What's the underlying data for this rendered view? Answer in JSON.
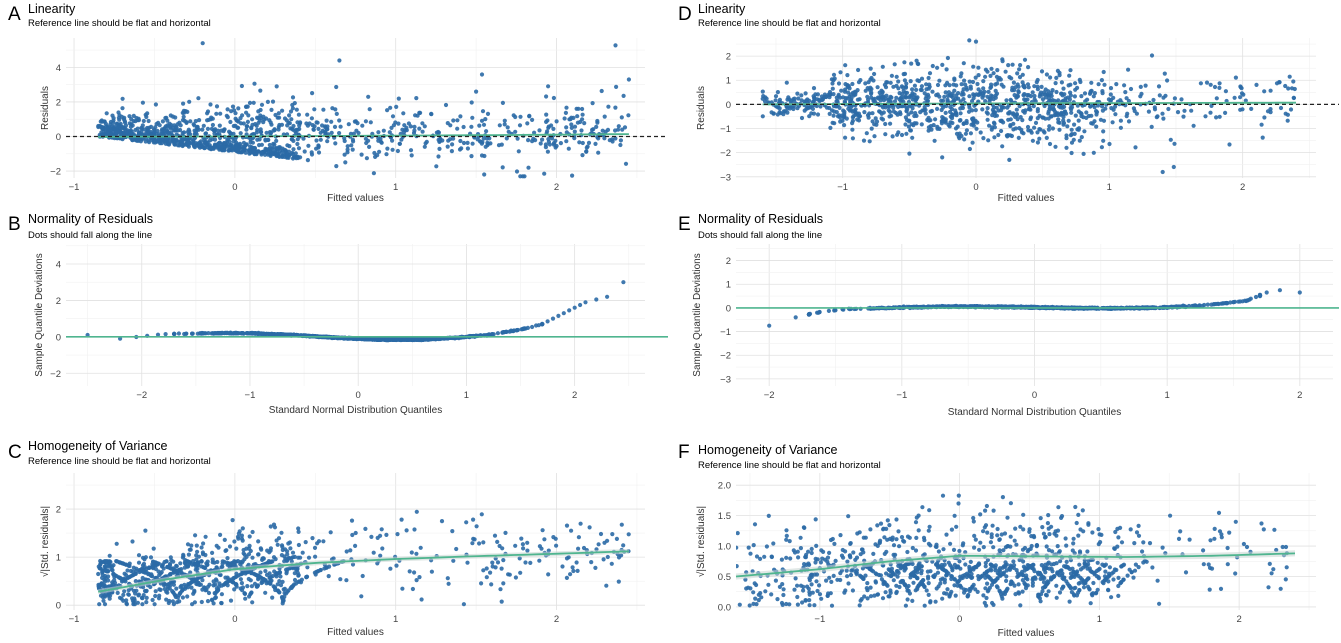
{
  "figure": {
    "colors": {
      "points": "#2b6aa6",
      "reference": "#4fb58f",
      "dashed": "#222222",
      "band": "#c9d6d2"
    }
  },
  "chart_data": [
    {
      "id": "A",
      "letter": "A",
      "type": "scatter",
      "title": "Linearity",
      "subtitle": "Reference line should be flat and horizontal",
      "xlabel": "Fitted values",
      "ylabel": "Residuals",
      "xlim": [
        -1.05,
        2.55
      ],
      "ylim": [
        -2.4,
        5.7
      ],
      "xticks": [
        -1,
        0,
        1,
        2
      ],
      "yticks": [
        -2,
        0,
        2,
        4
      ],
      "hline": 0,
      "reference_line": {
        "x": [
          -0.85,
          -0.2,
          0.5,
          1.2,
          1.9,
          2.45
        ],
        "y": [
          -0.02,
          0.0,
          0.03,
          0.06,
          0.1,
          0.14
        ]
      },
      "point_pattern": "linearity-fan",
      "x_range": [
        -0.85,
        2.45
      ],
      "extreme_points": [
        {
          "x": -0.2,
          "y": 5.4
        },
        {
          "x": 0.65,
          "y": 4.4
        },
        {
          "x": 1.5,
          "y": 2.6
        },
        {
          "x": 2.45,
          "y": 3.3
        },
        {
          "x": 1.55,
          "y": -2.2
        }
      ]
    },
    {
      "id": "D",
      "letter": "D",
      "type": "scatter",
      "title": "Linearity",
      "subtitle": "Reference line should be flat and horizontal",
      "xlabel": "Fitted values",
      "ylabel": "Residuals",
      "xlim": [
        -1.8,
        2.55
      ],
      "ylim": [
        -3.05,
        2.75
      ],
      "xticks": [
        -1,
        0,
        1,
        2
      ],
      "yticks": [
        -3,
        -2,
        -1,
        0,
        1,
        2
      ],
      "hline": 0,
      "reference_line": {
        "x": [
          -1.6,
          -0.8,
          0.0,
          0.8,
          1.6,
          2.4
        ],
        "y": [
          0.0,
          0.02,
          0.04,
          0.05,
          0.06,
          0.07
        ]
      },
      "point_pattern": "linearity-symmetric",
      "x_range": [
        -1.6,
        2.4
      ],
      "extreme_points": [
        {
          "x": -0.05,
          "y": 2.65
        },
        {
          "x": 0.0,
          "y": 2.6
        },
        {
          "x": 1.4,
          "y": -2.8
        },
        {
          "x": 0.25,
          "y": -2.3
        }
      ]
    },
    {
      "id": "B",
      "letter": "B",
      "type": "scatter",
      "title": "Normality of Residuals",
      "subtitle": "Dots should fall along the line",
      "xlabel": "Standard Normal Distribution Quantiles",
      "ylabel": "Sample Quantile Deviations",
      "xlim": [
        -2.7,
        2.65
      ],
      "ylim": [
        -2.7,
        5.1
      ],
      "xticks": [
        -2,
        -1,
        0,
        1,
        2
      ],
      "yticks": [
        -2,
        0,
        2,
        4
      ],
      "hline": 0,
      "qq_curve": {
        "x": [
          -2.5,
          -2.2,
          -1.8,
          -1.4,
          -1.0,
          -0.6,
          -0.2,
          0.2,
          0.6,
          0.9,
          1.2,
          1.5,
          1.7,
          1.9,
          2.1,
          2.3,
          2.45
        ],
        "y": [
          0.1,
          -0.1,
          0.15,
          0.2,
          0.2,
          0.1,
          -0.05,
          -0.15,
          -0.15,
          -0.05,
          0.1,
          0.4,
          0.7,
          1.3,
          1.9,
          2.2,
          3.0
        ]
      }
    },
    {
      "id": "E",
      "letter": "E",
      "type": "scatter",
      "title": "Normality of Residuals",
      "subtitle": "Dots should fall along the line",
      "xlabel": "Standard Normal Distribution Quantiles",
      "ylabel": "Sample Quantile Deviations",
      "xlim": [
        -2.25,
        2.25
      ],
      "ylim": [
        -3.3,
        2.7
      ],
      "xticks": [
        -2,
        -1,
        0,
        1,
        2
      ],
      "yticks": [
        -3,
        -2,
        -1,
        0,
        1,
        2
      ],
      "hline": 0,
      "qq_curve": {
        "x": [
          -2.0,
          -1.8,
          -1.6,
          -1.4,
          -1.0,
          -0.6,
          -0.2,
          0.2,
          0.6,
          1.0,
          1.2,
          1.4,
          1.6,
          1.75,
          1.85,
          2.0
        ],
        "y": [
          -0.75,
          -0.4,
          -0.15,
          -0.05,
          0.02,
          0.06,
          0.04,
          0.0,
          -0.02,
          0.02,
          0.08,
          0.18,
          0.3,
          0.65,
          0.75,
          0.65
        ]
      }
    },
    {
      "id": "C",
      "letter": "C",
      "type": "scatter",
      "title": "Homogeneity of Variance",
      "subtitle": "Reference line should be flat and horizontal",
      "xlabel": "Fitted values",
      "ylabel": "√|Std. residuals|",
      "xlim": [
        -1.05,
        2.55
      ],
      "ylim": [
        -0.1,
        2.75
      ],
      "xticks": [
        -1,
        0,
        1,
        2
      ],
      "yticks": [
        0,
        1,
        2
      ],
      "reference_line": {
        "x": [
          -0.85,
          -0.4,
          0.0,
          0.5,
          1.0,
          1.5,
          2.0,
          2.45
        ],
        "y": [
          0.28,
          0.55,
          0.75,
          0.88,
          0.96,
          1.02,
          1.07,
          1.12
        ]
      },
      "point_pattern": "variance-arcs",
      "x_range": [
        -0.85,
        2.45
      ]
    },
    {
      "id": "F",
      "letter": "F",
      "type": "scatter",
      "title": "Homogeneity of Variance",
      "subtitle": "Reference line should be flat and horizontal",
      "xlabel": "Fitted values",
      "ylabel": "√|Std. residuals|",
      "xlim": [
        -1.6,
        2.55
      ],
      "ylim": [
        -0.05,
        2.2
      ],
      "xticks": [
        -1,
        0,
        1,
        2
      ],
      "yticks": [
        0.0,
        0.5,
        1.0,
        1.5,
        2.0
      ],
      "reference_line": {
        "x": [
          -1.6,
          -1.0,
          -0.5,
          0.0,
          0.6,
          1.2,
          1.8,
          2.4
        ],
        "y": [
          0.5,
          0.62,
          0.75,
          0.84,
          0.83,
          0.82,
          0.84,
          0.88
        ]
      },
      "point_pattern": "variance-arcs",
      "x_range": [
        -1.6,
        2.4
      ]
    }
  ]
}
